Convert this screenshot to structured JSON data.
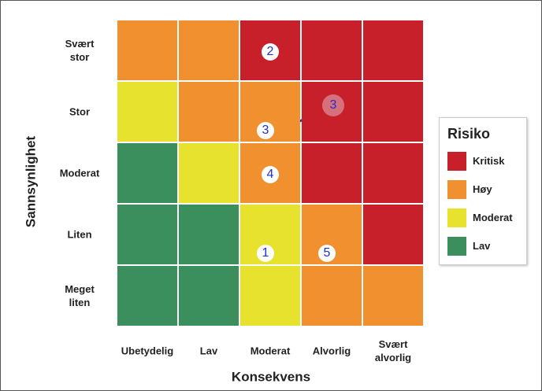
{
  "y_axis_label": "Sannsynlighet",
  "x_axis_label": "Konsekvens",
  "columns": [
    "Ubetydelig",
    "Lav",
    "Moderat",
    "Alvorlig",
    "Svært alvorlig"
  ],
  "rows": [
    {
      "label": "Svært stor",
      "cells": [
        {
          "color": "#f0902e"
        },
        {
          "color": "#f0902e"
        },
        {
          "color": "#c8202a",
          "marker": "2"
        },
        {
          "color": "#c8202a"
        },
        {
          "color": "#c8202a"
        }
      ]
    },
    {
      "label": "Stor",
      "cells": [
        {
          "color": "#e6e22e"
        },
        {
          "color": "#f0902e"
        },
        {
          "color": "#f0902e",
          "marker": "3"
        },
        {
          "color": "#c8202a",
          "marker": "3",
          "marker_fill": "#d6707c"
        },
        {
          "color": "#c8202a"
        }
      ]
    },
    {
      "label": "Moderat",
      "cells": [
        {
          "color": "#3a8f5c"
        },
        {
          "color": "#e6e22e"
        },
        {
          "color": "#f0902e",
          "marker": "4"
        },
        {
          "color": "#c8202a"
        },
        {
          "color": "#c8202a"
        }
      ]
    },
    {
      "label": "Liten",
      "cells": [
        {
          "color": "#3a8f5c"
        },
        {
          "color": "#3a8f5c"
        },
        {
          "color": "#e6e22e",
          "marker": "1"
        },
        {
          "color": "#f0902e",
          "marker": "5"
        },
        {
          "color": "#c8202a"
        }
      ]
    },
    {
      "label": "Meget liten",
      "cells": [
        {
          "color": "#3a8f5c"
        },
        {
          "color": "#3a8f5c"
        },
        {
          "color": "#e6e22e"
        },
        {
          "color": "#f0902e"
        },
        {
          "color": "#f0902e"
        }
      ]
    }
  ],
  "legend": {
    "title": "Risiko",
    "items": [
      {
        "label": "Kritisk",
        "color": "#c8202a"
      },
      {
        "label": "Høy",
        "color": "#f0902e"
      },
      {
        "label": "Moderat",
        "color": "#e6e22e"
      },
      {
        "label": "Lav",
        "color": "#3a8f5c"
      }
    ]
  }
}
